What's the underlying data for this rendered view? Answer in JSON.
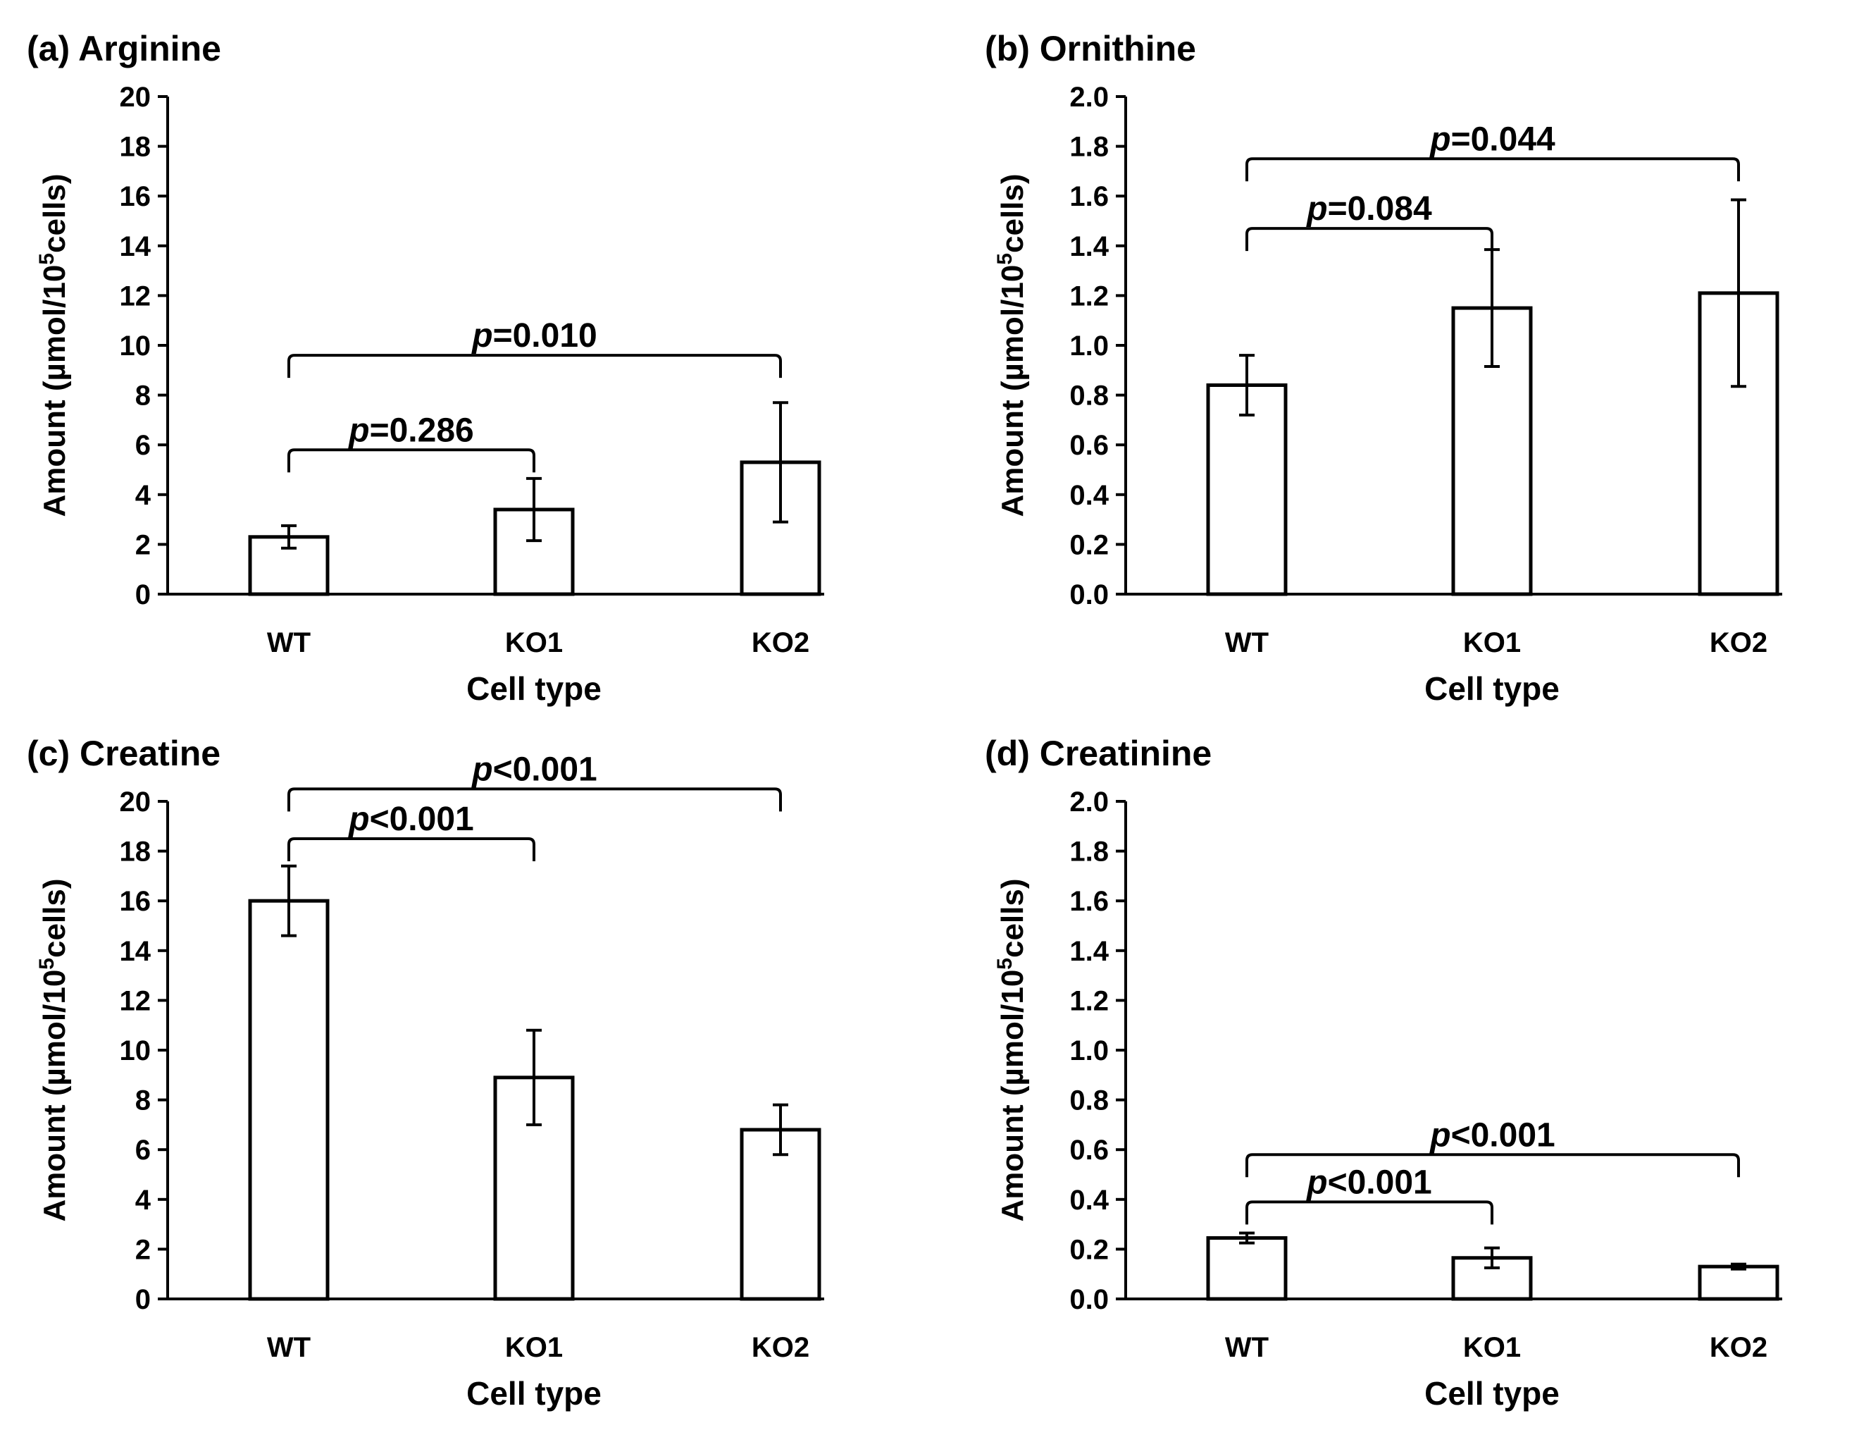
{
  "figure": {
    "ylabel_prefix": "Amount (µmol/10",
    "ylabel_sup": "5",
    "ylabel_suffix": "cells)"
  },
  "chart_data": [
    {
      "type": "bar",
      "title": "(a) Arginine",
      "xlabel": "Cell type",
      "ylabel": "Amount (µmol/10^5cells)",
      "categories": [
        "WT",
        "KO1",
        "KO2"
      ],
      "values": [
        2.3,
        3.4,
        5.3
      ],
      "errors": [
        0.45,
        1.25,
        2.4
      ],
      "ylim": [
        0,
        20
      ],
      "yticks": [
        "0",
        "2",
        "4",
        "6",
        "8",
        "10",
        "12",
        "14",
        "16",
        "18",
        "20"
      ],
      "comparisons": [
        {
          "from": 0,
          "to": 1,
          "level": 5.8,
          "label": "p=0.286"
        },
        {
          "from": 0,
          "to": 2,
          "level": 9.6,
          "label": "p=0.010"
        }
      ]
    },
    {
      "type": "bar",
      "title": "(b) Ornithine",
      "xlabel": "Cell type",
      "ylabel": "Amount (µmol/10^5cells)",
      "categories": [
        "WT",
        "KO1",
        "KO2"
      ],
      "values": [
        0.84,
        1.15,
        1.21
      ],
      "errors": [
        0.12,
        0.235,
        0.375
      ],
      "ylim": [
        0,
        2.0
      ],
      "yticks": [
        "0.0",
        "0.2",
        "0.4",
        "0.6",
        "0.8",
        "1.0",
        "1.2",
        "1.4",
        "1.6",
        "1.8",
        "2.0"
      ],
      "comparisons": [
        {
          "from": 0,
          "to": 1,
          "level": 1.47,
          "label": "p=0.084"
        },
        {
          "from": 0,
          "to": 2,
          "level": 1.75,
          "label": "p=0.044"
        }
      ]
    },
    {
      "type": "bar",
      "title": "(c) Creatine",
      "xlabel": "Cell type",
      "ylabel": "Amount (µmol/10^5cells)",
      "categories": [
        "WT",
        "KO1",
        "KO2"
      ],
      "values": [
        16.0,
        8.9,
        6.8
      ],
      "errors": [
        1.4,
        1.9,
        1.0
      ],
      "ylim": [
        0,
        20
      ],
      "yticks": [
        "0",
        "2",
        "4",
        "6",
        "8",
        "10",
        "12",
        "14",
        "16",
        "18",
        "20"
      ],
      "comparisons": [
        {
          "from": 0,
          "to": 1,
          "level": 18.5,
          "label": "p<0.001"
        },
        {
          "from": 0,
          "to": 2,
          "level": 20.5,
          "label": "p<0.001"
        }
      ]
    },
    {
      "type": "bar",
      "title": "(d) Creatinine",
      "xlabel": "Cell type",
      "ylabel": "Amount (µmol/10^5cells)",
      "categories": [
        "WT",
        "KO1",
        "KO2"
      ],
      "values": [
        0.245,
        0.165,
        0.13
      ],
      "errors": [
        0.02,
        0.04,
        0.01
      ],
      "ylim": [
        0,
        2.0
      ],
      "yticks": [
        "0.0",
        "0.2",
        "0.4",
        "0.6",
        "0.8",
        "1.0",
        "1.2",
        "1.4",
        "1.6",
        "1.8",
        "2.0"
      ],
      "comparisons": [
        {
          "from": 0,
          "to": 1,
          "level": 0.39,
          "label": "p<0.001"
        },
        {
          "from": 0,
          "to": 2,
          "level": 0.58,
          "label": "p<0.001"
        }
      ]
    }
  ]
}
